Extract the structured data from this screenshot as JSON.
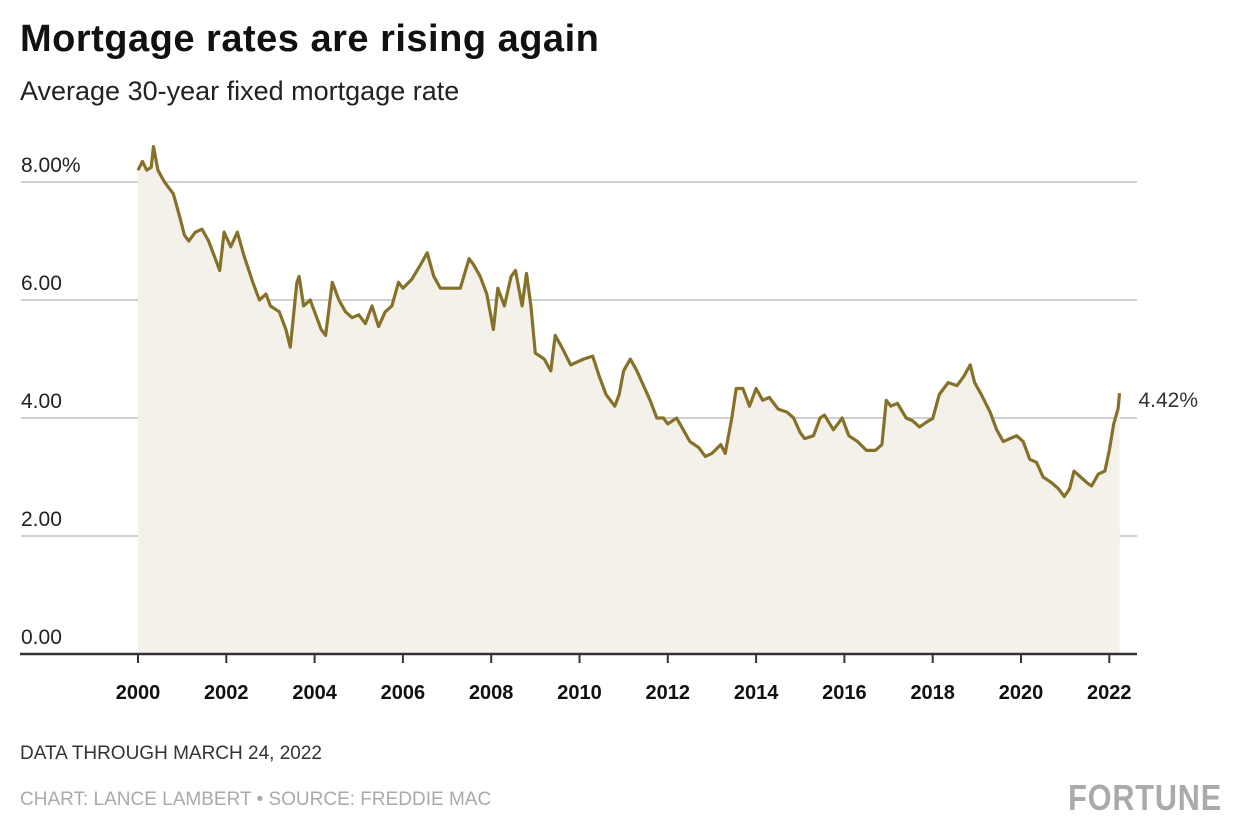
{
  "title": "Mortgage rates are rising again",
  "subtitle": "Average 30-year fixed mortgage rate",
  "note": "DATA THROUGH MARCH 24, 2022",
  "credit": "CHART: LANCE LAMBERT • SOURCE: FREDDIE MAC",
  "logo": "FORTUNE",
  "colors": {
    "line": "#86712a",
    "area": "#f4f1eb",
    "grid": "#d0d0d0",
    "axis": "#333333"
  },
  "chart_data": {
    "type": "area",
    "title": "Mortgage rates are rising again",
    "subtitle": "Average 30-year fixed mortgage rate",
    "xlabel": "",
    "ylabel": "",
    "xlim": [
      2000,
      2022.2
    ],
    "ylim": [
      0,
      8
    ],
    "grid": true,
    "y_ticks": [
      {
        "value": 0,
        "label": "0.00"
      },
      {
        "value": 2,
        "label": "2.00"
      },
      {
        "value": 4,
        "label": "4.00"
      },
      {
        "value": 6,
        "label": "6.00"
      },
      {
        "value": 8,
        "label": "8.00%"
      }
    ],
    "x_ticks": [
      {
        "value": 2000,
        "label": "2000"
      },
      {
        "value": 2002,
        "label": "2002"
      },
      {
        "value": 2004,
        "label": "2004"
      },
      {
        "value": 2006,
        "label": "2006"
      },
      {
        "value": 2008,
        "label": "2008"
      },
      {
        "value": 2010,
        "label": "2010"
      },
      {
        "value": 2012,
        "label": "2012"
      },
      {
        "value": 2014,
        "label": "2014"
      },
      {
        "value": 2016,
        "label": "2016"
      },
      {
        "value": 2018,
        "label": "2018"
      },
      {
        "value": 2020,
        "label": "2020"
      },
      {
        "value": 2022,
        "label": "2022"
      }
    ],
    "end_label": "4.42%",
    "x": [
      2000.0,
      2000.1,
      2000.2,
      2000.3,
      2000.35,
      2000.45,
      2000.6,
      2000.8,
      2000.95,
      2001.05,
      2001.15,
      2001.3,
      2001.45,
      2001.6,
      2001.75,
      2001.85,
      2001.95,
      2002.1,
      2002.25,
      2002.4,
      2002.6,
      2002.75,
      2002.9,
      2003.0,
      2003.2,
      2003.35,
      2003.45,
      2003.6,
      2003.65,
      2003.75,
      2003.9,
      2004.0,
      2004.15,
      2004.25,
      2004.4,
      2004.55,
      2004.7,
      2004.85,
      2005.0,
      2005.15,
      2005.3,
      2005.45,
      2005.6,
      2005.75,
      2005.9,
      2006.0,
      2006.2,
      2006.4,
      2006.55,
      2006.7,
      2006.85,
      2007.0,
      2007.15,
      2007.3,
      2007.5,
      2007.6,
      2007.75,
      2007.9,
      2008.0,
      2008.05,
      2008.15,
      2008.3,
      2008.45,
      2008.55,
      2008.7,
      2008.8,
      2008.9,
      2009.0,
      2009.2,
      2009.35,
      2009.45,
      2009.6,
      2009.8,
      2009.95,
      2010.1,
      2010.3,
      2010.45,
      2010.6,
      2010.8,
      2010.9,
      2011.0,
      2011.15,
      2011.3,
      2011.45,
      2011.6,
      2011.75,
      2011.9,
      2012.0,
      2012.2,
      2012.35,
      2012.5,
      2012.7,
      2012.85,
      2013.0,
      2013.2,
      2013.3,
      2013.45,
      2013.55,
      2013.7,
      2013.85,
      2014.0,
      2014.15,
      2014.3,
      2014.5,
      2014.7,
      2014.85,
      2015.0,
      2015.1,
      2015.3,
      2015.45,
      2015.55,
      2015.75,
      2015.95,
      2016.1,
      2016.3,
      2016.5,
      2016.7,
      2016.85,
      2016.95,
      2017.05,
      2017.2,
      2017.4,
      2017.55,
      2017.7,
      2017.9,
      2018.0,
      2018.15,
      2018.35,
      2018.55,
      2018.7,
      2018.85,
      2018.95,
      2019.1,
      2019.3,
      2019.45,
      2019.6,
      2019.75,
      2019.9,
      2020.05,
      2020.2,
      2020.35,
      2020.5,
      2020.7,
      2020.85,
      2020.98,
      2021.1,
      2021.2,
      2021.35,
      2021.5,
      2021.6,
      2021.75,
      2021.9,
      2022.0,
      2022.1,
      2022.2,
      2022.23
    ],
    "series": [
      {
        "values": [
          8.2,
          8.35,
          8.2,
          8.25,
          8.6,
          8.2,
          8.0,
          7.8,
          7.4,
          7.1,
          7.0,
          7.15,
          7.2,
          7.0,
          6.7,
          6.5,
          7.15,
          6.9,
          7.15,
          6.75,
          6.3,
          6.0,
          6.1,
          5.9,
          5.8,
          5.5,
          5.2,
          6.3,
          6.4,
          5.9,
          6.0,
          5.8,
          5.5,
          5.4,
          6.3,
          6.0,
          5.8,
          5.7,
          5.75,
          5.6,
          5.9,
          5.55,
          5.8,
          5.9,
          6.3,
          6.2,
          6.35,
          6.6,
          6.8,
          6.4,
          6.2,
          6.2,
          6.2,
          6.2,
          6.7,
          6.6,
          6.4,
          6.1,
          5.7,
          5.5,
          6.2,
          5.9,
          6.4,
          6.5,
          5.9,
          6.45,
          5.9,
          5.1,
          5.0,
          4.8,
          5.4,
          5.2,
          4.9,
          4.95,
          5.0,
          5.05,
          4.7,
          4.4,
          4.2,
          4.4,
          4.8,
          5.0,
          4.8,
          4.55,
          4.3,
          4.0,
          4.0,
          3.9,
          4.0,
          3.8,
          3.6,
          3.5,
          3.35,
          3.4,
          3.55,
          3.4,
          4.0,
          4.5,
          4.5,
          4.2,
          4.5,
          4.3,
          4.35,
          4.15,
          4.1,
          4.0,
          3.75,
          3.65,
          3.7,
          4.0,
          4.05,
          3.8,
          4.0,
          3.7,
          3.6,
          3.45,
          3.45,
          3.55,
          4.3,
          4.2,
          4.25,
          4.0,
          3.95,
          3.85,
          3.95,
          3.99,
          4.4,
          4.6,
          4.55,
          4.7,
          4.9,
          4.6,
          4.4,
          4.1,
          3.8,
          3.6,
          3.65,
          3.7,
          3.6,
          3.3,
          3.25,
          3.0,
          2.9,
          2.8,
          2.67,
          2.8,
          3.1,
          3.0,
          2.9,
          2.85,
          3.05,
          3.1,
          3.45,
          3.9,
          4.16,
          4.42
        ]
      }
    ]
  }
}
